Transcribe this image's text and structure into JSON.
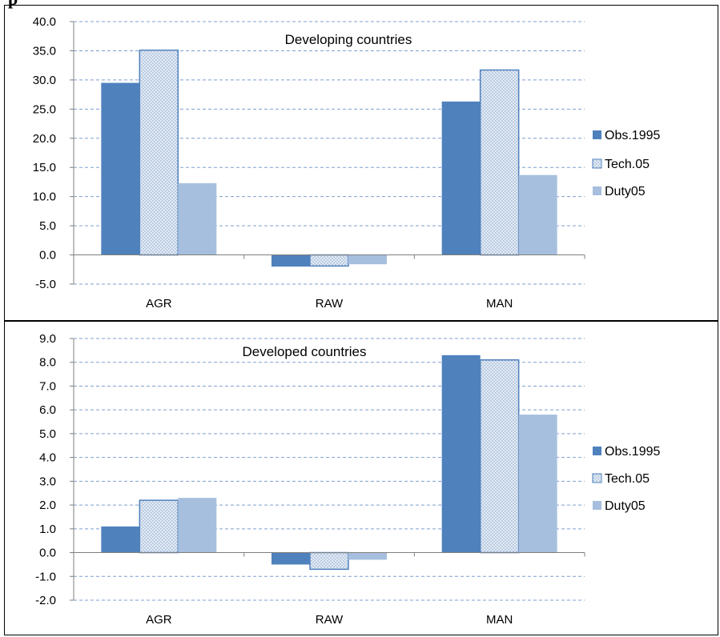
{
  "header_fragment": "p",
  "colors": {
    "obs": "#4f81bd",
    "tech_stroke": "#4f81bd",
    "tech_fill": "#dbe5f1",
    "duty": "#a7bfde",
    "grid": "#7f9fcf"
  },
  "chart_data": [
    {
      "type": "bar",
      "title": "Developing countries",
      "categories": [
        "AGR",
        "RAW",
        "MAN"
      ],
      "series": [
        {
          "name": "Obs.1995",
          "values": [
            29.5,
            -2.0,
            26.3
          ]
        },
        {
          "name": "Tech.05",
          "values": [
            35.1,
            -1.9,
            31.7
          ]
        },
        {
          "name": "Duty05",
          "values": [
            12.3,
            -1.6,
            13.7
          ]
        }
      ],
      "ylim": [
        -5,
        40
      ],
      "yticks": [
        "-5.0",
        "0.0",
        "5.0",
        "10.0",
        "15.0",
        "20.0",
        "25.0",
        "30.0",
        "35.0",
        "40.0"
      ],
      "ytick_values": [
        -5,
        0,
        5,
        10,
        15,
        20,
        25,
        30,
        35,
        40
      ],
      "grid": true,
      "legend": "right"
    },
    {
      "type": "bar",
      "title": "Developed countries",
      "categories": [
        "AGR",
        "RAW",
        "MAN"
      ],
      "series": [
        {
          "name": "Obs.1995",
          "values": [
            1.1,
            -0.5,
            8.3
          ]
        },
        {
          "name": "Tech.05",
          "values": [
            2.2,
            -0.7,
            8.1
          ]
        },
        {
          "name": "Duty05",
          "values": [
            2.3,
            -0.3,
            5.8
          ]
        }
      ],
      "ylim": [
        -2,
        9
      ],
      "yticks": [
        "-2.0",
        "-1.0",
        "0.0",
        "1.0",
        "2.0",
        "3.0",
        "4.0",
        "5.0",
        "6.0",
        "7.0",
        "8.0",
        "9.0"
      ],
      "ytick_values": [
        -2,
        -1,
        0,
        1,
        2,
        3,
        4,
        5,
        6,
        7,
        8,
        9
      ],
      "grid": true,
      "legend": "right"
    }
  ]
}
